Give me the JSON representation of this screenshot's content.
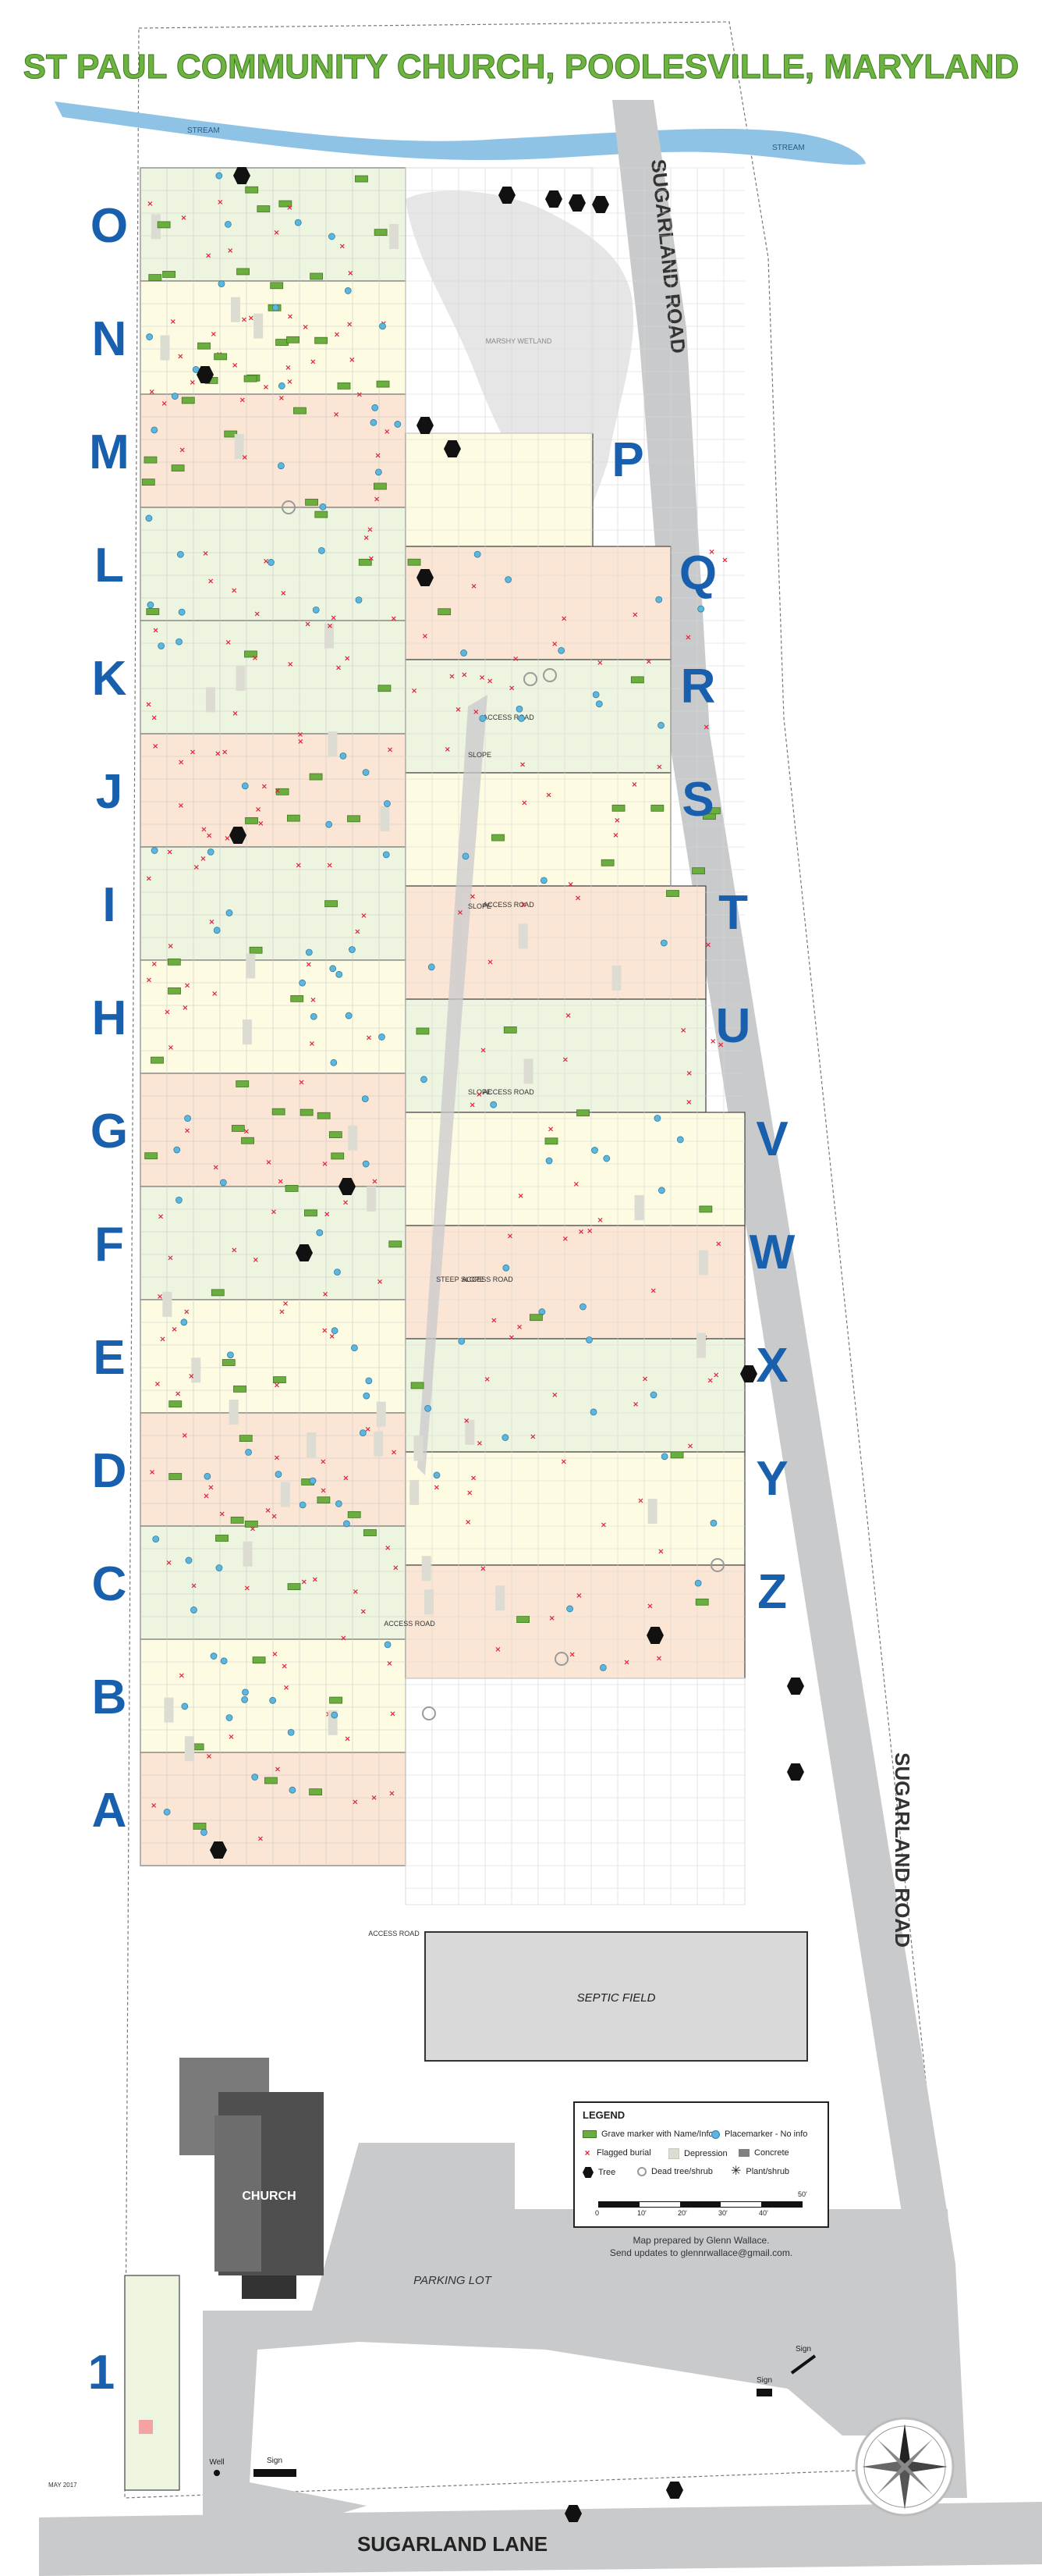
{
  "title": "ST PAUL COMMUNITY CHURCH, POOLESVILLE, MARYLAND",
  "colors": {
    "title_green": "#6cb33f",
    "section_letter_blue": "#1860ad",
    "stream_blue": "#8ec3e6",
    "road_gray": "#c9cacc",
    "section_green": "#edf4e0",
    "section_yellow": "#fdfbe2",
    "section_peach": "#fbe6d5",
    "grave_marker_green": "#6cad3f",
    "placemarker_blue": "#5fb6dd",
    "flagged_red": "#e0203b",
    "depression_gray": "#dcdcd2",
    "concrete_gray": "#808080",
    "church_dark": "#4a4a4a"
  },
  "left_section_letters": [
    "O",
    "N",
    "M",
    "L",
    "K",
    "J",
    "I",
    "H",
    "G",
    "F",
    "E",
    "D",
    "C",
    "B",
    "A"
  ],
  "right_section_letters": [
    "P",
    "Q",
    "R",
    "S",
    "T",
    "U",
    "V",
    "W",
    "X",
    "Y",
    "Z"
  ],
  "section_1_label": "1",
  "labels": {
    "stream_left": "STREAM",
    "stream_right": "STREAM",
    "road_top": "SUGARLAND ROAD",
    "road_bottom": "SUGARLAND ROAD",
    "lane": "SUGARLAND LANE",
    "wetland": "MARSHY WETLAND",
    "septic": "SEPTIC FIELD",
    "church": "CHURCH",
    "parking": "PARKING LOT",
    "access_road": "ACCESS ROAD",
    "slope": "SLOPE",
    "steep_slope": "STEEP SLOPE",
    "sign": "Sign",
    "well": "Well",
    "date": "MAY 2017"
  },
  "legend": {
    "title": "LEGEND",
    "items": [
      {
        "label": "Grave marker with Name/Info",
        "icon": "grave-marker-icon"
      },
      {
        "label": "Placemarker - No info",
        "icon": "placemarker-icon"
      },
      {
        "label": "Flagged burial",
        "icon": "flag-icon"
      },
      {
        "label": "Depression",
        "icon": "depression-icon"
      },
      {
        "label": "Concrete",
        "icon": "concrete-icon"
      },
      {
        "label": "Tree",
        "icon": "tree-icon"
      },
      {
        "label": "Dead tree/shrub",
        "icon": "dead-tree-icon"
      },
      {
        "label": "Plant/shrub",
        "icon": "plant-icon"
      }
    ],
    "scale_labels": [
      "0",
      "10'",
      "20'",
      "30'",
      "40'",
      "50'"
    ]
  },
  "credit_line1": "Map prepared by Glenn Wallace.",
  "credit_line2": "Send updates to glennrwallace@gmail.com."
}
